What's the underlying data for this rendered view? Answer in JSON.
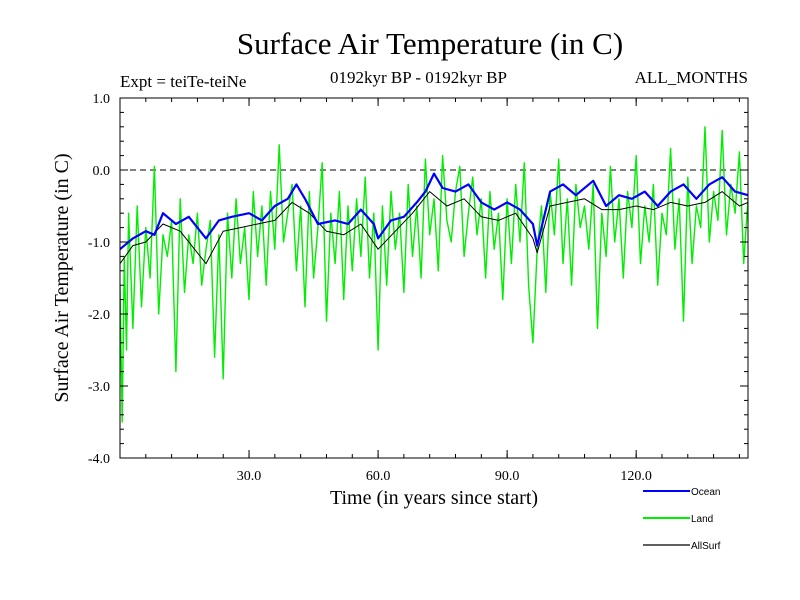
{
  "chart_data": {
    "type": "line",
    "title": "Surface Air Temperature (in C)",
    "expt_label": "Expt = teiTe-teiNe",
    "period_label": "0192kyr BP - 0192kyr BP",
    "months_label": "ALL_MONTHS",
    "xlabel": "Time (in years since start)",
    "ylabel": "Surface Air Temperature (in C)",
    "xlim": [
      0,
      146
    ],
    "ylim": [
      -4.0,
      1.0
    ],
    "x_ticks": [
      30,
      60,
      90,
      120
    ],
    "x_tick_labels": [
      "30.0",
      "60.0",
      "90.0",
      "120.0"
    ],
    "y_ticks": [
      -4,
      -3,
      -2,
      -1,
      0,
      1
    ],
    "y_tick_labels": [
      "-4.0",
      "-3.0",
      "-2.0",
      "-1.0",
      "0.0",
      "1.0"
    ],
    "zero_line": true,
    "legend_position": "bottom-right",
    "series": [
      {
        "name": "Ocean",
        "color": "#0000ff",
        "x": [
          0,
          3,
          6,
          8,
          10,
          13,
          16,
          20,
          23,
          26,
          30,
          33,
          36,
          39,
          41,
          43,
          46,
          50,
          53,
          56,
          59,
          60,
          63,
          66,
          69,
          71,
          73,
          75,
          78,
          81,
          84,
          87,
          90,
          93,
          96,
          97,
          100,
          103,
          106,
          110,
          113,
          116,
          119,
          122,
          125,
          128,
          131,
          134,
          137,
          140,
          143,
          146
        ],
        "values": [
          -1.1,
          -0.95,
          -0.85,
          -0.9,
          -0.6,
          -0.75,
          -0.65,
          -0.95,
          -0.7,
          -0.65,
          -0.6,
          -0.7,
          -0.5,
          -0.4,
          -0.2,
          -0.4,
          -0.75,
          -0.7,
          -0.75,
          -0.55,
          -0.75,
          -0.95,
          -0.7,
          -0.65,
          -0.45,
          -0.3,
          -0.05,
          -0.25,
          -0.3,
          -0.2,
          -0.45,
          -0.55,
          -0.45,
          -0.55,
          -0.75,
          -1.05,
          -0.3,
          -0.2,
          -0.35,
          -0.15,
          -0.5,
          -0.35,
          -0.4,
          -0.3,
          -0.5,
          -0.3,
          -0.2,
          -0.4,
          -0.2,
          -0.1,
          -0.3,
          -0.35
        ]
      },
      {
        "name": "Land",
        "color": "#00ee00",
        "x": [
          0,
          0.5,
          1,
          1.5,
          2,
          3,
          4,
          5,
          6,
          7,
          8,
          9,
          10,
          11,
          12,
          13,
          14,
          15,
          16,
          17,
          18,
          19,
          20,
          21,
          22,
          23,
          24,
          25,
          26,
          27,
          28,
          29,
          30,
          31,
          32,
          33,
          34,
          35,
          36,
          37,
          38,
          39,
          40,
          41,
          42,
          43,
          44,
          45,
          46,
          47,
          48,
          49,
          50,
          51,
          52,
          53,
          54,
          55,
          56,
          57,
          58,
          59,
          60,
          61,
          62,
          63,
          64,
          65,
          66,
          67,
          68,
          69,
          70,
          71,
          72,
          73,
          74,
          75,
          76,
          77,
          78,
          79,
          80,
          81,
          82,
          83,
          84,
          85,
          86,
          87,
          88,
          89,
          90,
          91,
          92,
          93,
          94,
          95,
          96,
          97,
          98,
          99,
          100,
          101,
          102,
          103,
          104,
          105,
          106,
          107,
          108,
          109,
          110,
          111,
          112,
          113,
          114,
          115,
          116,
          117,
          118,
          119,
          120,
          121,
          122,
          123,
          124,
          125,
          126,
          127,
          128,
          129,
          130,
          131,
          132,
          133,
          134,
          135,
          136,
          137,
          138,
          139,
          140,
          141,
          142,
          143,
          144,
          145,
          146
        ],
        "values": [
          -1.6,
          -3.5,
          -1.2,
          -2.5,
          -0.6,
          -2.2,
          -0.5,
          -1.9,
          -0.8,
          -1.5,
          0.05,
          -2.0,
          -0.9,
          -1.2,
          -0.7,
          -2.8,
          -0.4,
          -1.7,
          -0.9,
          -1.3,
          -0.6,
          -1.6,
          -1.1,
          -0.7,
          -2.6,
          -0.9,
          -2.9,
          -0.6,
          -1.5,
          -0.4,
          -1.3,
          -0.8,
          -1.8,
          -0.3,
          -1.2,
          -0.5,
          -1.6,
          -0.3,
          -1.1,
          0.35,
          -1.0,
          -0.6,
          -0.2,
          -1.4,
          -0.5,
          -1.9,
          -0.3,
          -1.5,
          -0.8,
          0.1,
          -2.1,
          -0.6,
          -1.3,
          -0.3,
          -1.8,
          -0.5,
          -1.4,
          -0.4,
          -1.2,
          -0.1,
          -1.5,
          -0.6,
          -2.5,
          -0.5,
          -1.6,
          -0.3,
          -1.1,
          -0.6,
          -1.7,
          -0.2,
          -1.2,
          -0.5,
          -1.5,
          0.15,
          -0.9,
          -0.4,
          -1.4,
          0.2,
          -0.7,
          -1.0,
          -0.3,
          0.05,
          -1.2,
          -0.6,
          -0.1,
          -0.9,
          -0.4,
          -1.5,
          -0.3,
          -1.1,
          -0.6,
          -1.8,
          -0.4,
          -1.3,
          -0.2,
          -1.0,
          0.1,
          -1.6,
          -2.4,
          -1.1,
          -0.5,
          -1.7,
          -0.3,
          -0.9,
          0.15,
          -1.3,
          -0.4,
          -1.6,
          -0.2,
          -0.8,
          -0.5,
          -1.1,
          -0.2,
          -2.2,
          -0.6,
          -1.2,
          0.05,
          -1.0,
          -0.4,
          -1.5,
          -0.3,
          -0.8,
          0.2,
          -1.3,
          -0.5,
          -1.0,
          -0.2,
          -1.6,
          -0.6,
          -0.9,
          0.3,
          -1.1,
          -0.4,
          -2.1,
          -0.1,
          -1.3,
          -0.5,
          -0.8,
          0.6,
          -1.0,
          -0.3,
          -0.7,
          0.55,
          -0.9,
          -0.2,
          -0.6,
          0.25,
          -1.3,
          -0.4
        ]
      },
      {
        "name": "AllSurf",
        "color": "#000000",
        "x": [
          0,
          3,
          6,
          10,
          14,
          18,
          20,
          24,
          28,
          32,
          36,
          40,
          44,
          48,
          52,
          56,
          60,
          64,
          68,
          72,
          76,
          80,
          84,
          88,
          92,
          96,
          97,
          100,
          104,
          108,
          112,
          116,
          120,
          124,
          128,
          132,
          136,
          140,
          144,
          146
        ],
        "values": [
          -1.3,
          -1.05,
          -1.0,
          -0.75,
          -0.85,
          -1.15,
          -1.3,
          -0.85,
          -0.8,
          -0.75,
          -0.7,
          -0.45,
          -0.6,
          -0.85,
          -0.9,
          -0.75,
          -1.1,
          -0.85,
          -0.6,
          -0.3,
          -0.5,
          -0.4,
          -0.65,
          -0.7,
          -0.6,
          -0.95,
          -1.15,
          -0.5,
          -0.45,
          -0.4,
          -0.55,
          -0.55,
          -0.5,
          -0.55,
          -0.45,
          -0.5,
          -0.45,
          -0.3,
          -0.5,
          -0.45
        ]
      }
    ]
  }
}
